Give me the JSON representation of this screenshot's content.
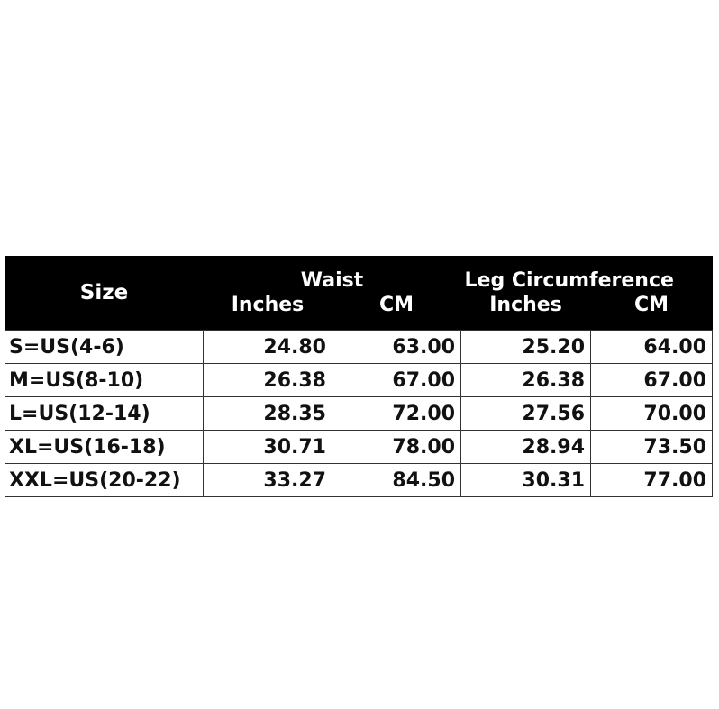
{
  "table": {
    "headers": {
      "size": "Size",
      "waist": "Waist",
      "leg": "Leg Circumference",
      "waist_inches": "Inches",
      "waist_cm": "CM",
      "leg_inches": "Inches",
      "leg_cm": "CM"
    },
    "rows": [
      {
        "size": "S=US(4-6)",
        "waist_in": "24.80",
        "waist_cm": "63.00",
        "leg_in": "25.20",
        "leg_cm": "64.00"
      },
      {
        "size": "M=US(8-10)",
        "waist_in": "26.38",
        "waist_cm": "67.00",
        "leg_in": "26.38",
        "leg_cm": "67.00"
      },
      {
        "size": "L=US(12-14)",
        "waist_in": "28.35",
        "waist_cm": "72.00",
        "leg_in": "27.56",
        "leg_cm": "70.00"
      },
      {
        "size": "XL=US(16-18)",
        "waist_in": "30.71",
        "waist_cm": "78.00",
        "leg_in": "28.94",
        "leg_cm": "73.50"
      },
      {
        "size": "XXL=US(20-22)",
        "waist_in": "33.27",
        "waist_cm": "84.50",
        "leg_in": "30.31",
        "leg_cm": "77.00"
      }
    ]
  }
}
